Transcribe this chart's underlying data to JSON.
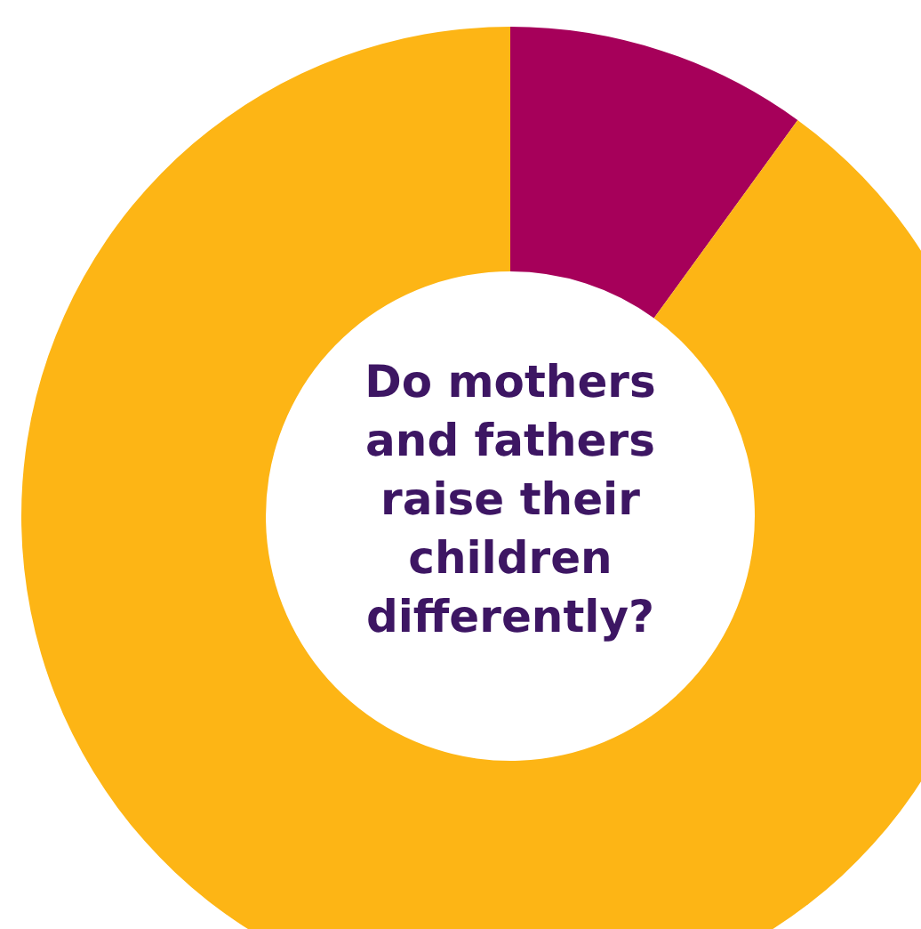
{
  "chart_data": {
    "type": "donut",
    "title": "Do mothers and fathers raise their children differently?",
    "categories": [
      null,
      null
    ],
    "values": [
      10,
      90
    ],
    "colors": [
      "#a6005a",
      "#fdb515"
    ]
  }
}
